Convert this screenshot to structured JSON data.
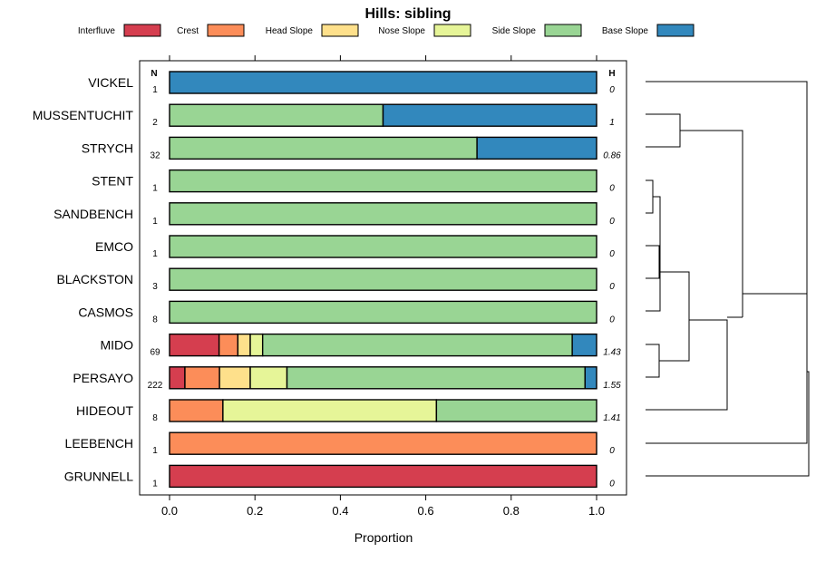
{
  "chart_data": {
    "type": "bar",
    "orientation": "horizontal",
    "stacked": true,
    "title": "Hills: sibling",
    "xlabel": "Proportion",
    "ylabel": "",
    "xlim": [
      0,
      1
    ],
    "x_ticks": [
      "0.0",
      "0.2",
      "0.4",
      "0.6",
      "0.8",
      "1.0"
    ],
    "n_header": "N",
    "h_header": "H",
    "legend_position": "top",
    "series": [
      {
        "name": "Interfluve",
        "color": "#d53e4f"
      },
      {
        "name": "Crest",
        "color": "#fc8d59"
      },
      {
        "name": "Head Slope",
        "color": "#fee08b"
      },
      {
        "name": "Nose Slope",
        "color": "#e6f598"
      },
      {
        "name": "Side Slope",
        "color": "#99d594"
      },
      {
        "name": "Base Slope",
        "color": "#3288bd"
      }
    ],
    "rows": [
      {
        "name": "VICKEL",
        "n": "1",
        "h": "0",
        "values": [
          0,
          0,
          0,
          0,
          0,
          1.0
        ]
      },
      {
        "name": "MUSSENTUCHIT",
        "n": "2",
        "h": "1",
        "values": [
          0,
          0,
          0,
          0,
          0.5,
          0.5
        ]
      },
      {
        "name": "STRYCH",
        "n": "32",
        "h": "0.86",
        "values": [
          0,
          0,
          0,
          0,
          0.72,
          0.28
        ]
      },
      {
        "name": "STENT",
        "n": "1",
        "h": "0",
        "values": [
          0,
          0,
          0,
          0,
          1.0,
          0
        ]
      },
      {
        "name": "SANDBENCH",
        "n": "1",
        "h": "0",
        "values": [
          0,
          0,
          0,
          0,
          1.0,
          0
        ]
      },
      {
        "name": "EMCO",
        "n": "1",
        "h": "0",
        "values": [
          0,
          0,
          0,
          0,
          1.0,
          0
        ]
      },
      {
        "name": "BLACKSTON",
        "n": "3",
        "h": "0",
        "values": [
          0,
          0,
          0,
          0,
          1.0,
          0
        ]
      },
      {
        "name": "CASMOS",
        "n": "8",
        "h": "0",
        "values": [
          0,
          0,
          0,
          0,
          1.0,
          0
        ]
      },
      {
        "name": "MIDO",
        "n": "69",
        "h": "1.43",
        "values": [
          0.116,
          0.044,
          0.029,
          0.029,
          0.725,
          0.057
        ]
      },
      {
        "name": "PERSAYO",
        "n": "222",
        "h": "1.55",
        "values": [
          0.036,
          0.081,
          0.072,
          0.086,
          0.698,
          0.027
        ]
      },
      {
        "name": "HIDEOUT",
        "n": "8",
        "h": "1.41",
        "values": [
          0,
          0.125,
          0,
          0.5,
          0.375,
          0
        ]
      },
      {
        "name": "LEEBENCH",
        "n": "1",
        "h": "0",
        "values": [
          0,
          1.0,
          0,
          0,
          0,
          0
        ]
      },
      {
        "name": "GRUNNELL",
        "n": "1",
        "h": "0",
        "values": [
          1.0,
          0,
          0,
          0,
          0,
          0
        ]
      }
    ],
    "dendrogram": {
      "description": "hierarchical clustering of rows by composition; leaves in row order",
      "merges": [
        {
          "a": "MUSSENTUCHIT",
          "b": "STRYCH",
          "height": 0.1
        },
        {
          "a": "STENT",
          "b": "SANDBENCH",
          "height": 0.02
        },
        {
          "a": "EMCO",
          "b": "BLACKSTON",
          "height": 0.005
        },
        {
          "a": "STENT+SANDBENCH",
          "b": "EMCO+BLACKSTON",
          "height": 0.04
        },
        {
          "a": "STENT..BLACKSTON",
          "b": "CASMOS",
          "height": 0.046
        },
        {
          "a": "MIDO",
          "b": "PERSAYO",
          "height": 0.04
        },
        {
          "a": "STENT..CASMOS",
          "b": "MIDO+PERSAYO",
          "height": 0.13
        },
        {
          "a": "STENT..PERSAYO",
          "b": "HIDEOUT",
          "height": 0.24
        },
        {
          "a": "VICKEL",
          "b": "MUSSENTUCHIT+STRYCH",
          "height": 0.46
        },
        {
          "a": "VICKEL..STRYCH",
          "b": "STENT..HIDEOUT",
          "height": 0.46
        },
        {
          "a": "VICKEL..HIDEOUT",
          "b": "LEEBENCH",
          "height": 0.48
        },
        {
          "a": "VICKEL..LEEBENCH",
          "b": "GRUNNELL",
          "height": 0.49
        }
      ]
    }
  }
}
